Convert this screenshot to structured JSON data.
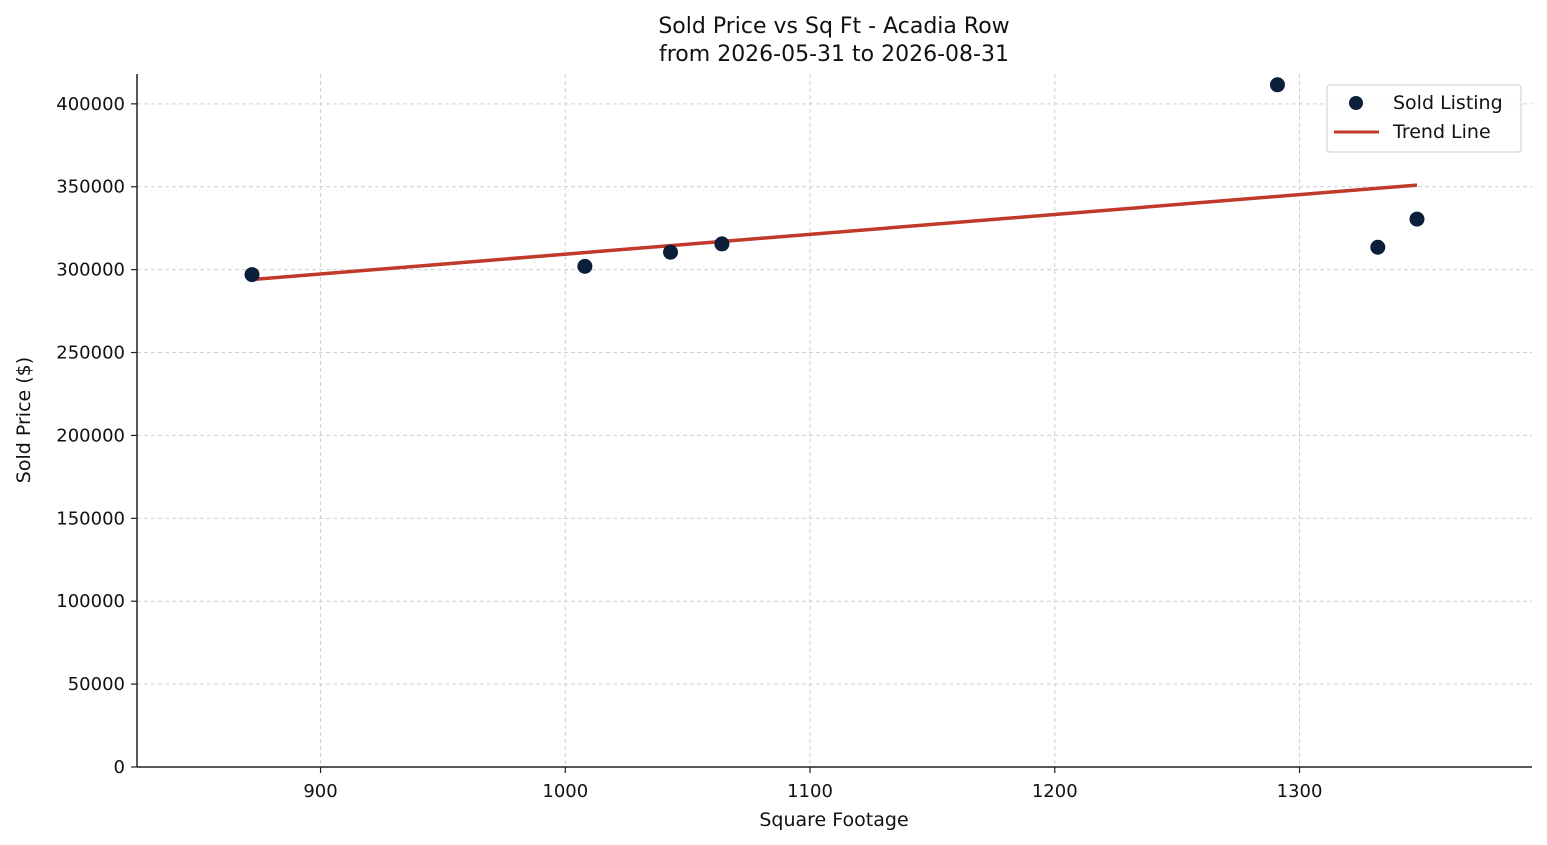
{
  "chart_data": {
    "type": "scatter",
    "title": "Sold Price vs Sq Ft - Acadia Row",
    "subtitle": "from 2026-05-31 to 2026-08-31",
    "xlabel": "Square Footage",
    "ylabel": "Sold Price ($)",
    "xlim": [
      825,
      1395
    ],
    "ylim": [
      0,
      418000
    ],
    "x_ticks": [
      900,
      1000,
      1100,
      1200,
      1300
    ],
    "y_ticks": [
      0,
      50000,
      100000,
      150000,
      200000,
      250000,
      300000,
      350000,
      400000
    ],
    "grid": true,
    "legend_position": "top-right",
    "series": [
      {
        "name": "Sold Listing",
        "kind": "scatter",
        "color": "#0b1f3a",
        "points": [
          {
            "x": 872,
            "y": 297000
          },
          {
            "x": 1008,
            "y": 302000
          },
          {
            "x": 1043,
            "y": 310500
          },
          {
            "x": 1064,
            "y": 315500
          },
          {
            "x": 1291,
            "y": 411500
          },
          {
            "x": 1332,
            "y": 313500
          },
          {
            "x": 1348,
            "y": 330500
          }
        ]
      },
      {
        "name": "Trend Line",
        "kind": "line",
        "color": "#c0392b",
        "points": [
          {
            "x": 872,
            "y": 294000
          },
          {
            "x": 1348,
            "y": 351000
          }
        ]
      }
    ]
  }
}
